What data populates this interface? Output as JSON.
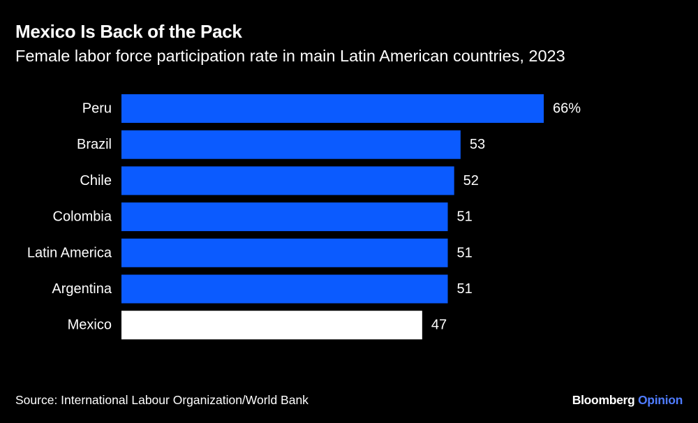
{
  "header": {
    "title": "Mexico Is Back of the Pack",
    "subtitle": "Female labor force participation rate in main Latin American countries, 2023"
  },
  "chart_data": {
    "type": "bar",
    "orientation": "horizontal",
    "title": "Mexico Is Back of the Pack",
    "subtitle": "Female labor force participation rate in main Latin American countries, 2023",
    "categories": [
      "Peru",
      "Brazil",
      "Chile",
      "Colombia",
      "Latin America",
      "Argentina",
      "Mexico"
    ],
    "values": [
      66,
      53,
      52,
      51,
      51,
      51,
      47
    ],
    "value_labels": [
      "66%",
      "53",
      "52",
      "51",
      "51",
      "51",
      "47"
    ],
    "xlim": [
      0,
      66
    ],
    "grid": false,
    "colors": {
      "default_bar": "#0b5bff",
      "highlight_bar": "#ffffff"
    },
    "highlight_category": "Mexico"
  },
  "footer": {
    "source": "Source: International Labour Organization/World Bank",
    "brand_main": "Bloomberg",
    "brand_accent": "Opinion"
  }
}
